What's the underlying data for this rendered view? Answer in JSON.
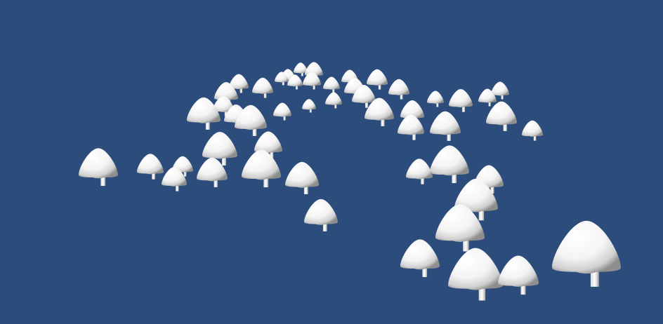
{
  "scene": {
    "background_color": "#2c4c7c",
    "object_color": "#ffffff",
    "shade_color": "#8a8a8a",
    "object_kind": "mushroom"
  }
}
